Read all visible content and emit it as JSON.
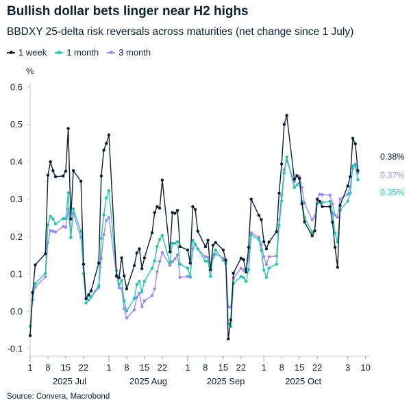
{
  "title": "Bullish dollar bets linger near H2 highs",
  "subtitle": "BBDXY 25-delta risk reversals across maturities (net change since 1 July)",
  "source": "Source: Convera, Macrobond",
  "chart_data": {
    "type": "line",
    "title": "Bullish dollar bets linger near H2 highs",
    "subtitle": "BBDXY 25-delta risk reversals across maturities (net change since 1 July)",
    "ylabel": "%",
    "ylim": [
      -0.1,
      0.6
    ],
    "yticks": [
      "-0.1",
      "0.0",
      "0.1",
      "0.2",
      "0.3",
      "0.4",
      "0.5",
      "0.6"
    ],
    "xlim": [
      "2025-07-01",
      "2025-11-12"
    ],
    "xticks": [
      {
        "date": "2025-07-01",
        "label": "1"
      },
      {
        "date": "2025-07-08",
        "label": "8"
      },
      {
        "date": "2025-07-15",
        "label": "15"
      },
      {
        "date": "2025-07-22",
        "label": "22"
      },
      {
        "date": "2025-08-01",
        "label": "1"
      },
      {
        "date": "2025-08-08",
        "label": "8"
      },
      {
        "date": "2025-08-15",
        "label": "15"
      },
      {
        "date": "2025-08-22",
        "label": "22"
      },
      {
        "date": "2025-09-01",
        "label": "1"
      },
      {
        "date": "2025-09-08",
        "label": "8"
      },
      {
        "date": "2025-09-15",
        "label": "15"
      },
      {
        "date": "2025-09-22",
        "label": "22"
      },
      {
        "date": "2025-10-01",
        "label": "1"
      },
      {
        "date": "2025-10-08",
        "label": "8"
      },
      {
        "date": "2025-10-15",
        "label": "15"
      },
      {
        "date": "2025-10-22",
        "label": "22"
      },
      {
        "date": "2025-11-03",
        "label": "3"
      },
      {
        "date": "2025-11-10",
        "label": "10"
      }
    ],
    "month_labels": [
      {
        "start": "2025-07-01",
        "end": "2025-08-01",
        "label": "2025 Jul"
      },
      {
        "start": "2025-08-01",
        "end": "2025-09-01",
        "label": "2025 Aug"
      },
      {
        "start": "2025-09-01",
        "end": "2025-10-01",
        "label": "2025 Sep"
      },
      {
        "start": "2025-10-01",
        "end": "2025-11-01",
        "label": "2025 Oct"
      }
    ],
    "grid": false,
    "legend": "top-left",
    "x": [
      "2025-07-01",
      "2025-07-02",
      "2025-07-03",
      "2025-07-07",
      "2025-07-08",
      "2025-07-09",
      "2025-07-10",
      "2025-07-11",
      "2025-07-14",
      "2025-07-15",
      "2025-07-16",
      "2025-07-17",
      "2025-07-18",
      "2025-07-21",
      "2025-07-22",
      "2025-07-23",
      "2025-07-24",
      "2025-07-25",
      "2025-07-28",
      "2025-07-29",
      "2025-07-30",
      "2025-07-31",
      "2025-08-01",
      "2025-08-04",
      "2025-08-05",
      "2025-08-06",
      "2025-08-07",
      "2025-08-08",
      "2025-08-11",
      "2025-08-12",
      "2025-08-13",
      "2025-08-14",
      "2025-08-15",
      "2025-08-18",
      "2025-08-19",
      "2025-08-20",
      "2025-08-21",
      "2025-08-22",
      "2025-08-25",
      "2025-08-26",
      "2025-08-27",
      "2025-08-28",
      "2025-08-29",
      "2025-09-01",
      "2025-09-02",
      "2025-09-03",
      "2025-09-04",
      "2025-09-05",
      "2025-09-08",
      "2025-09-09",
      "2025-09-10",
      "2025-09-11",
      "2025-09-12",
      "2025-09-15",
      "2025-09-16",
      "2025-09-17",
      "2025-09-18",
      "2025-09-19",
      "2025-09-22",
      "2025-09-23",
      "2025-09-24",
      "2025-09-25",
      "2025-09-26",
      "2025-09-29",
      "2025-09-30",
      "2025-10-01",
      "2025-10-02",
      "2025-10-03",
      "2025-10-06",
      "2025-10-07",
      "2025-10-08",
      "2025-10-09",
      "2025-10-10",
      "2025-10-13",
      "2025-10-14",
      "2025-10-15",
      "2025-10-16",
      "2025-10-17",
      "2025-10-20",
      "2025-10-21",
      "2025-10-22",
      "2025-10-23",
      "2025-10-24",
      "2025-10-27",
      "2025-10-28",
      "2025-10-29",
      "2025-10-30",
      "2025-10-31",
      "2025-11-03",
      "2025-11-04",
      "2025-11-05",
      "2025-11-06",
      "2025-11-07"
    ],
    "series": [
      {
        "name": "1 week",
        "color": "#0b1f33",
        "end_label": "0.38%",
        "values": [
          -0.065,
          0.05,
          0.124,
          0.154,
          0.364,
          0.4,
          0.376,
          0.36,
          0.362,
          0.375,
          0.489,
          0.247,
          0.376,
          0.348,
          0.126,
          0.034,
          0.044,
          0.055,
          0.129,
          0.362,
          0.431,
          0.449,
          0.472,
          0.094,
          0.09,
          0.143,
          0.095,
          0.06,
          0.122,
          0.156,
          0.167,
          0.114,
          0.143,
          0.21,
          0.264,
          0.28,
          0.276,
          0.351,
          0.159,
          0.264,
          0.262,
          0.27,
          0.173,
          0.164,
          0.129,
          0.28,
          0.272,
          0.214,
          0.173,
          0.19,
          0.111,
          0.177,
          0.184,
          0.164,
          0.137,
          -0.074,
          -0.023,
          0.102,
          0.142,
          0.138,
          0.105,
          0.171,
          0.3,
          0.257,
          0.245,
          0.186,
          0.167,
          0.185,
          0.213,
          0.316,
          0.394,
          0.5,
          0.524,
          0.353,
          0.362,
          0.355,
          0.288,
          0.239,
          0.202,
          0.215,
          0.3,
          0.294,
          0.28,
          0.28,
          0.238,
          0.171,
          0.118,
          0.283,
          0.335,
          0.36,
          0.463,
          0.448,
          0.376
        ]
      },
      {
        "name": "1 month",
        "color": "#1fc7ad",
        "end_label": "0.35%",
        "values": [
          -0.04,
          0.03,
          0.074,
          0.102,
          0.231,
          0.254,
          0.247,
          0.234,
          0.248,
          0.248,
          0.317,
          0.198,
          0.274,
          0.213,
          0.101,
          0.022,
          0.03,
          0.039,
          0.069,
          0.195,
          0.258,
          0.303,
          0.323,
          0.109,
          0.072,
          0.083,
          0.028,
          0.001,
          0.034,
          0.072,
          0.08,
          0.052,
          0.08,
          0.115,
          0.135,
          0.173,
          0.192,
          0.203,
          0.13,
          0.182,
          0.182,
          0.186,
          0.126,
          0.115,
          0.093,
          0.19,
          0.18,
          0.167,
          0.134,
          0.134,
          0.093,
          0.15,
          0.164,
          0.137,
          0.128,
          -0.033,
          -0.04,
          0.074,
          0.093,
          0.09,
          0.08,
          0.112,
          0.204,
          0.192,
          0.163,
          0.11,
          0.091,
          0.115,
          0.126,
          0.23,
          0.295,
          0.37,
          0.413,
          0.331,
          0.338,
          0.343,
          0.294,
          0.252,
          0.212,
          0.215,
          0.288,
          0.292,
          0.291,
          0.294,
          0.263,
          0.209,
          0.185,
          0.27,
          0.295,
          0.316,
          0.389,
          0.389,
          0.352
        ]
      },
      {
        "name": "3 month",
        "color": "#9b87f5",
        "end_label": "0.37%",
        "values": [
          -0.04,
          0.051,
          0.064,
          0.092,
          0.184,
          0.216,
          0.214,
          0.212,
          0.227,
          0.225,
          0.274,
          0.197,
          0.262,
          0.197,
          0.126,
          0.034,
          0.042,
          0.038,
          0.063,
          0.142,
          0.205,
          0.243,
          0.251,
          0.097,
          0.063,
          0.061,
          0.007,
          -0.018,
          0.004,
          0.038,
          0.048,
          0.012,
          0.028,
          0.042,
          0.06,
          0.106,
          0.133,
          0.157,
          0.123,
          0.133,
          0.14,
          0.151,
          0.091,
          0.093,
          0.091,
          0.167,
          0.177,
          0.167,
          0.146,
          0.144,
          0.118,
          0.143,
          0.153,
          0.142,
          0.134,
          0.011,
          0.011,
          0.089,
          0.115,
          0.11,
          0.113,
          0.143,
          0.21,
          0.198,
          0.179,
          0.146,
          0.125,
          0.146,
          0.148,
          0.246,
          0.31,
          0.378,
          0.403,
          0.347,
          0.364,
          0.36,
          0.331,
          0.289,
          0.245,
          0.253,
          0.3,
          0.313,
          0.312,
          0.311,
          0.288,
          0.257,
          0.252,
          0.3,
          0.313,
          0.333,
          0.382,
          0.394,
          0.37
        ]
      }
    ]
  }
}
